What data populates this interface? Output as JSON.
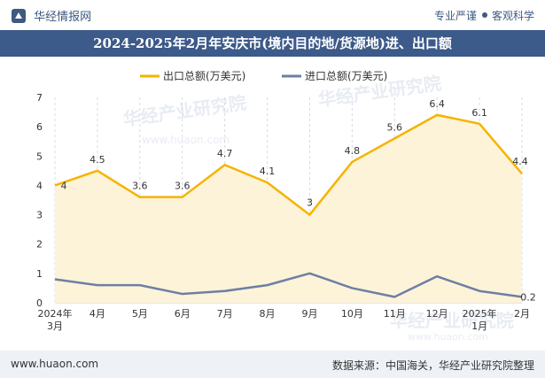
{
  "header": {
    "brand": "华经情报网",
    "tagline_left": "专业严谨",
    "tagline_right": "客观科学"
  },
  "watermark": "华经产业研究院",
  "watermark_url": "www.huaon.com",
  "footer": {
    "website": "www.huaon.com",
    "source": "数据来源：中国海关，华经产业研究院整理"
  },
  "colors": {
    "export": "#f5b400",
    "import": "#6e7fa3",
    "area": "#fdf3d9",
    "title_bg": "#3c5a8a"
  },
  "chart_data": {
    "type": "line",
    "title": "2024-2025年2月年安庆市(境内目的地/货源地)进、出口额",
    "categories": [
      "2024年3月",
      "4月",
      "5月",
      "6月",
      "7月",
      "8月",
      "9月",
      "10月",
      "11月",
      "12月",
      "2025年1月",
      "2月"
    ],
    "series": [
      {
        "name": "出口总额(万美元)",
        "values": [
          4,
          4.5,
          3.6,
          3.6,
          4.7,
          4.1,
          3,
          4.8,
          5.6,
          6.4,
          6.1,
          4.4
        ]
      },
      {
        "name": "进口总额(万美元)",
        "values": [
          0.8,
          0.6,
          0.6,
          0.3,
          0.4,
          0.6,
          1.0,
          0.5,
          0.2,
          0.9,
          0.4,
          0.2
        ]
      }
    ],
    "data_labels": {
      "export": [
        "4",
        "4.5",
        "3.6",
        "3.6",
        "4.7",
        "4.1",
        "3",
        "4.8",
        "5.6",
        "6.4",
        "6.1",
        "4.4"
      ],
      "import_last": "0.2"
    },
    "yticks": [
      0,
      1,
      2,
      3,
      4,
      5,
      6,
      7
    ],
    "ylim": [
      0,
      7
    ],
    "legend": "top-center",
    "grid": "vertical-dashed"
  }
}
